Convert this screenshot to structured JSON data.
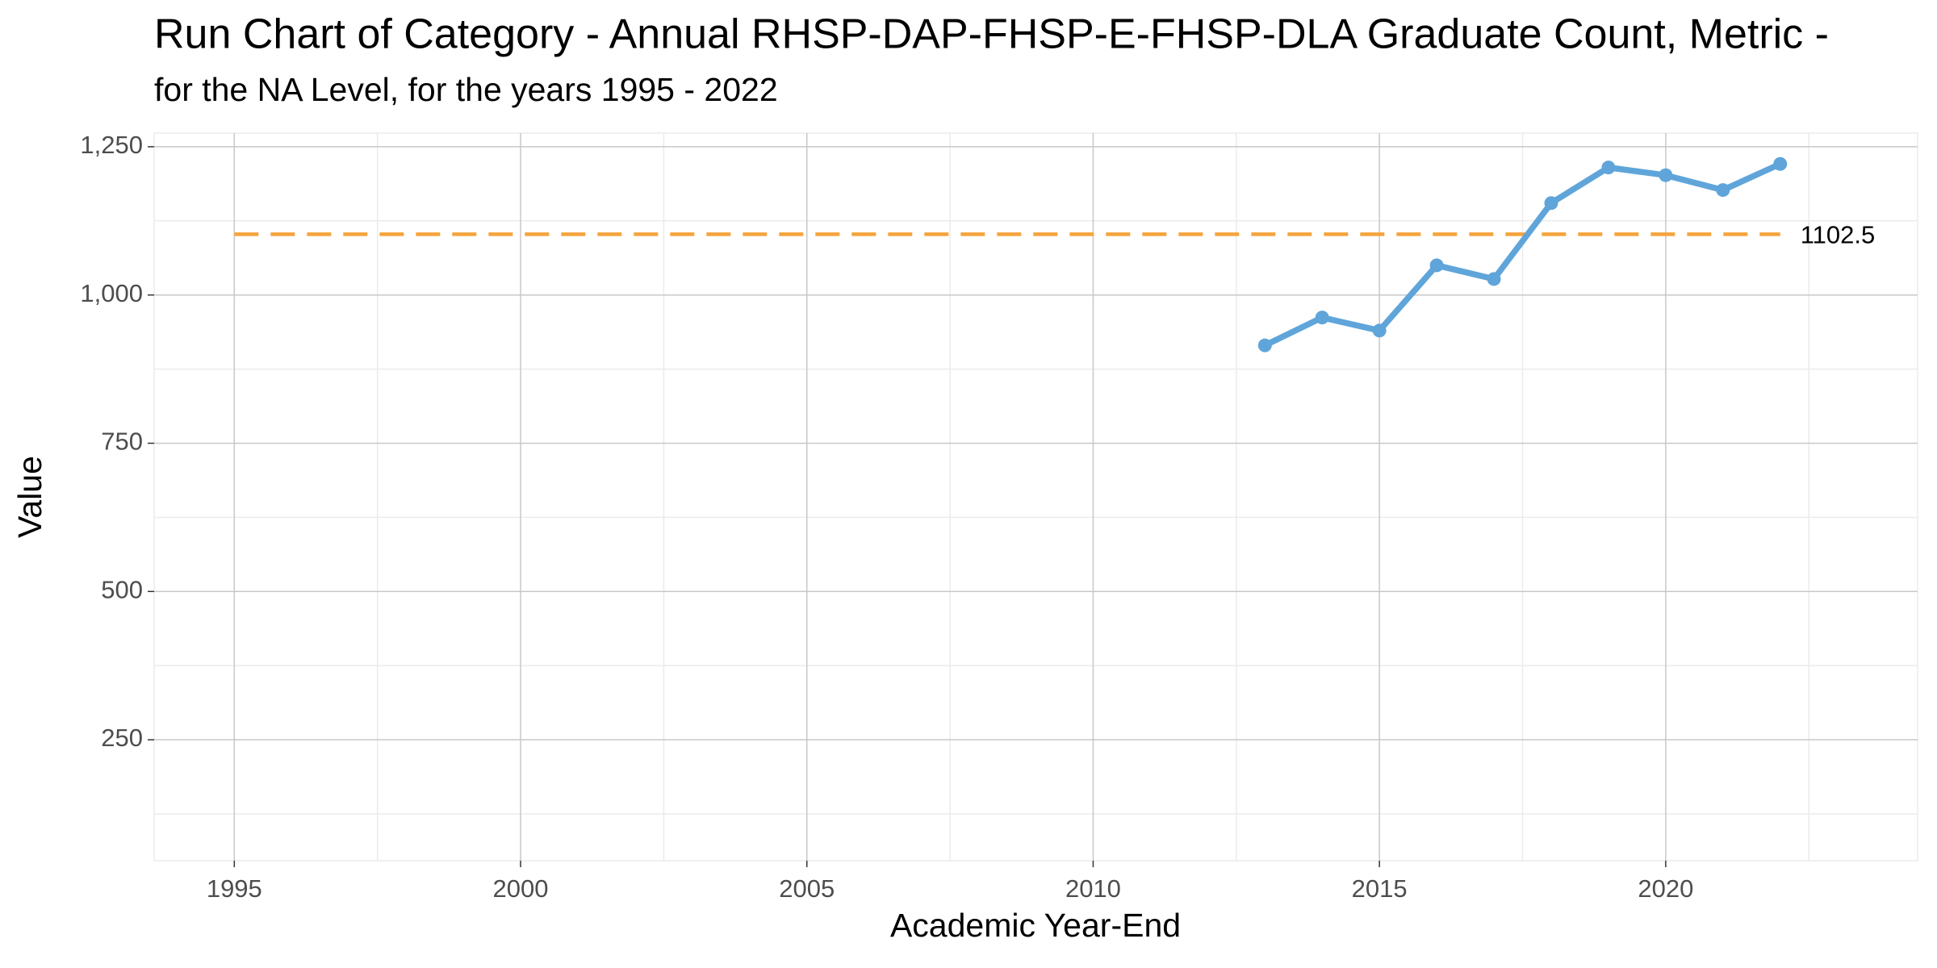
{
  "chart_data": {
    "type": "line",
    "title": "Run Chart of Category - Annual RHSP-DAP-FHSP-E-FHSP-DLA Graduate Count, Metric -",
    "subtitle": "for the NA Level, for the years 1995 - 2022",
    "x_label": "Academic Year-End",
    "y_label": "Value",
    "x": [
      2013,
      2014,
      2015,
      2016,
      2017,
      2018,
      2019,
      2020,
      2021,
      2022
    ],
    "series": [
      {
        "color": "#5fa5da",
        "values": [
          915,
          962,
          940,
          1050,
          1027,
          1155,
          1215,
          1202,
          1177,
          1221
        ]
      }
    ],
    "reference_line": {
      "value": 1102.5,
      "color": "#f5a33a"
    },
    "xlim": [
      1993.6,
      2024.4
    ],
    "xticks": [
      1995,
      2000,
      2005,
      2010,
      2015,
      2020
    ],
    "ylim": [
      46,
      1273
    ],
    "yticks": [
      250,
      500,
      750,
      {
        "value": 1000,
        "label": "1,000"
      },
      {
        "value": 1250,
        "label": "1,250"
      }
    ],
    "grid": true
  }
}
